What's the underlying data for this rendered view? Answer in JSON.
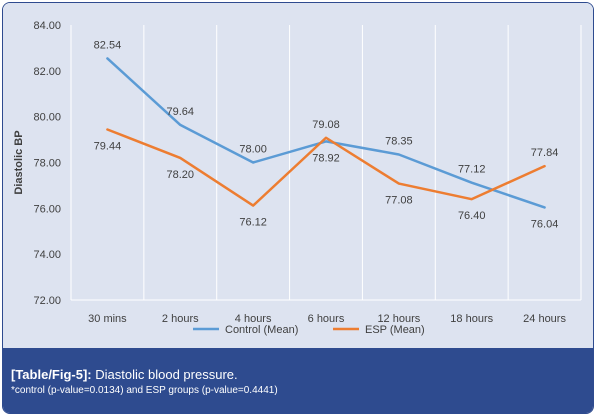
{
  "chart_data": {
    "type": "line",
    "categories": [
      "30 mins",
      "2 hours",
      "4 hours",
      "6 hours",
      "12 hours",
      "18 hours",
      "24 hours"
    ],
    "series": [
      {
        "name": "Control (Mean)",
        "values": [
          82.54,
          79.64,
          78.0,
          78.92,
          78.35,
          77.12,
          76.04
        ],
        "labels": [
          "82.54",
          "79.64",
          "78.00",
          "78.92",
          "78.35",
          "77.12",
          "76.04"
        ],
        "color": "#5b9bd5"
      },
      {
        "name": "ESP (Mean)",
        "values": [
          79.44,
          78.2,
          76.12,
          79.08,
          77.08,
          76.4,
          77.84
        ],
        "labels": [
          "79.44",
          "78.20",
          "76.12",
          "79.08",
          "77.08",
          "76.40",
          "77.84"
        ],
        "color": "#ed7d31"
      }
    ],
    "ylabel": "Diastolic BP",
    "xlabel": "",
    "ylim": [
      72,
      84
    ],
    "yticks": [
      "72.00",
      "74.00",
      "76.00",
      "78.00",
      "80.00",
      "82.00",
      "84.00"
    ],
    "grid": "vertical",
    "legend_position": "bottom"
  },
  "caption": {
    "label": "[Table/Fig-5]:",
    "text": "Diastolic blood pressure.",
    "note": "*control (p-value=0.0134) and ESP groups (p-value=0.4441)"
  },
  "colors": {
    "background": "#dde3f0",
    "caption_band": "#2e4b8f",
    "grid": "#ffffff"
  }
}
